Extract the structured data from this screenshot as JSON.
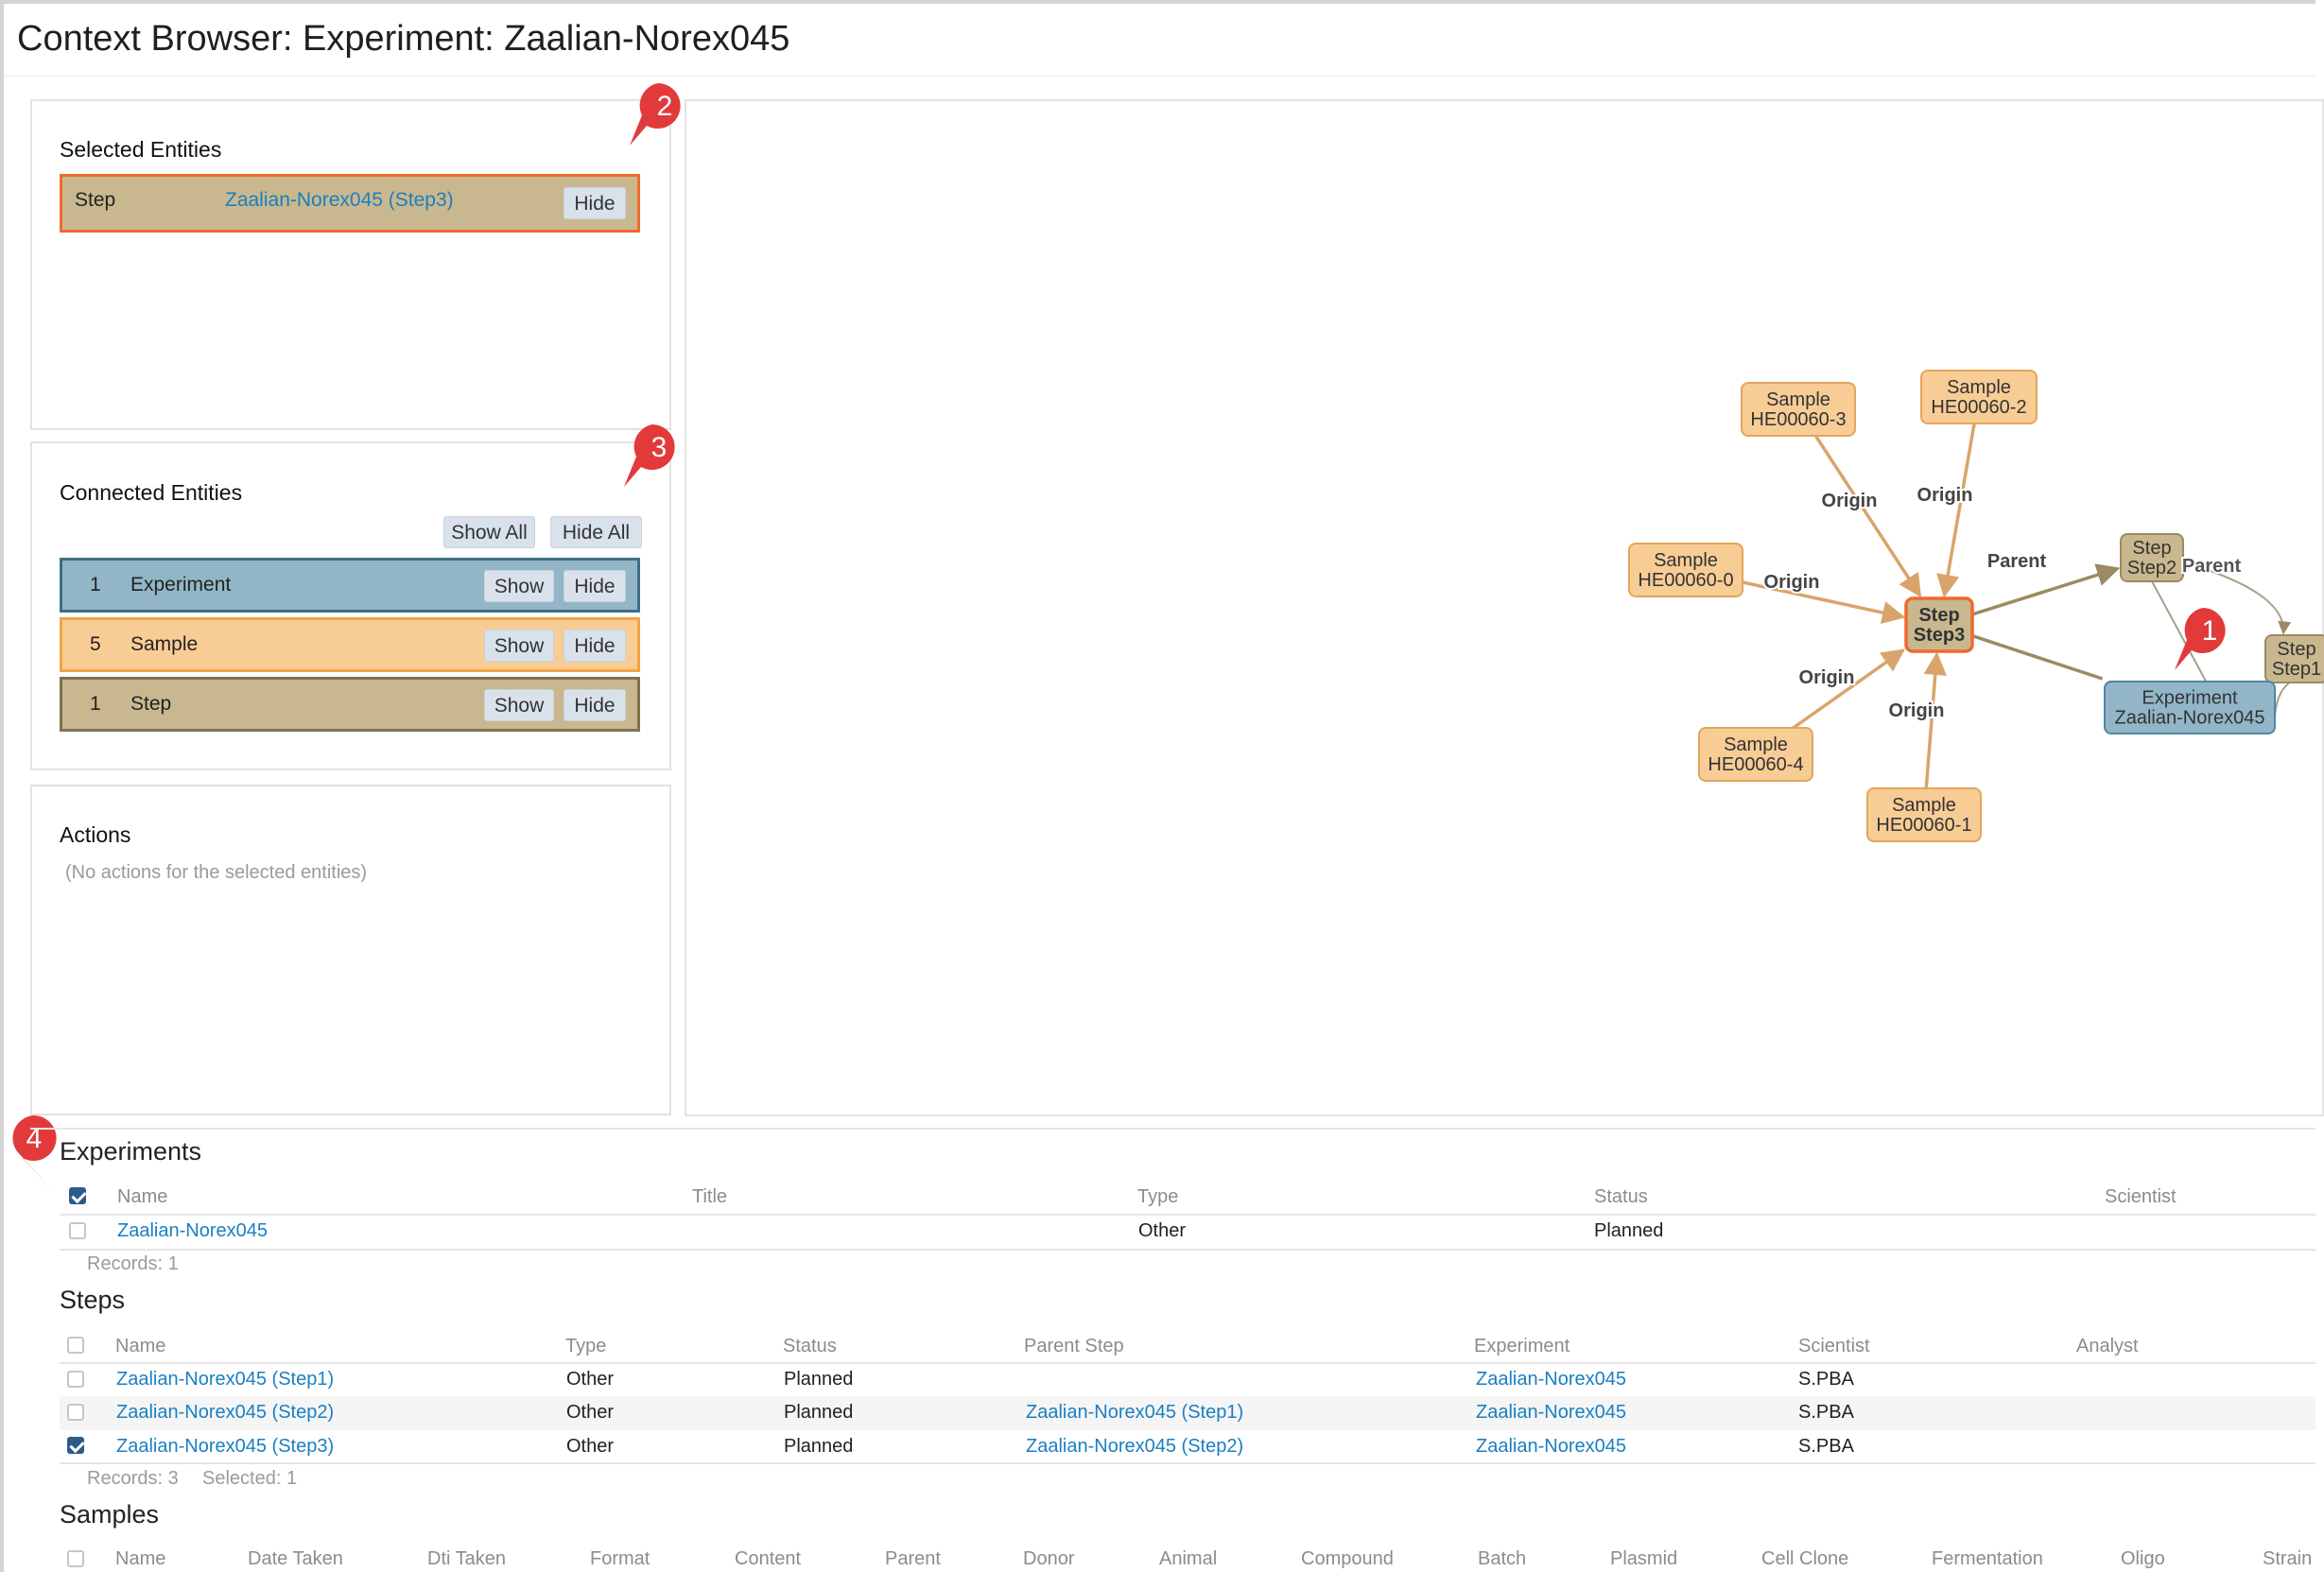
{
  "header": {
    "title": "Context Browser: Experiment: Zaalian-Norex045"
  },
  "selected": {
    "title": "Selected Entities",
    "row": {
      "type": "Step",
      "name": "Zaalian-Norex045 (Step3)",
      "hide_label": "Hide"
    }
  },
  "connected": {
    "title": "Connected Entities",
    "show_all": "Show All",
    "hide_all": "Hide All",
    "rows": [
      {
        "count": "1",
        "type": "Experiment",
        "show": "Show",
        "hide": "Hide",
        "color": "#92b6c8",
        "border": "#3f6e85"
      },
      {
        "count": "5",
        "type": "Sample",
        "show": "Show",
        "hide": "Hide",
        "color": "#f8cc95",
        "border": "#f2a345"
      },
      {
        "count": "1",
        "type": "Step",
        "show": "Show",
        "hide": "Hide",
        "color": "#c9b88f",
        "border": "#7f7150"
      }
    ]
  },
  "actions": {
    "title": "Actions",
    "empty": "(No actions for the selected entities)"
  },
  "markers": [
    "1",
    "2",
    "3",
    "4"
  ],
  "graph": {
    "nodes": [
      {
        "id": "step3",
        "type": "Step",
        "name": "Step3",
        "kind": "step-selected"
      },
      {
        "id": "step2",
        "type": "Step",
        "name": "Step2",
        "kind": "step"
      },
      {
        "id": "step1",
        "type": "Step",
        "name": "Step1",
        "kind": "step"
      },
      {
        "id": "exp",
        "type": "Experiment",
        "name": "Zaalian-Norex045",
        "kind": "experiment"
      },
      {
        "id": "s3",
        "type": "Sample",
        "name": "HE00060-3",
        "kind": "sample"
      },
      {
        "id": "s2",
        "type": "Sample",
        "name": "HE00060-2",
        "kind": "sample"
      },
      {
        "id": "s0",
        "type": "Sample",
        "name": "HE00060-0",
        "kind": "sample"
      },
      {
        "id": "s4",
        "type": "Sample",
        "name": "HE00060-4",
        "kind": "sample"
      },
      {
        "id": "s1",
        "type": "Sample",
        "name": "HE00060-1",
        "kind": "sample"
      }
    ],
    "edge_labels": {
      "origin": "Origin",
      "parent": "Parent"
    }
  },
  "experiments": {
    "title": "Experiments",
    "columns": [
      "Name",
      "Title",
      "Type",
      "Status",
      "Scientist"
    ],
    "rows": [
      {
        "name": "Zaalian-Norex045",
        "title": "",
        "type": "Other",
        "status": "Planned",
        "scientist": ""
      }
    ],
    "records": "Records: 1"
  },
  "steps": {
    "title": "Steps",
    "columns": [
      "Name",
      "Type",
      "Status",
      "Parent Step",
      "Experiment",
      "Scientist",
      "Analyst"
    ],
    "rows": [
      {
        "name": "Zaalian-Norex045 (Step1)",
        "type": "Other",
        "status": "Planned",
        "parent": "",
        "experiment": "Zaalian-Norex045",
        "scientist": "S.PBA",
        "checked": false
      },
      {
        "name": "Zaalian-Norex045 (Step2)",
        "type": "Other",
        "status": "Planned",
        "parent": "Zaalian-Norex045 (Step1)",
        "experiment": "Zaalian-Norex045",
        "scientist": "S.PBA",
        "checked": false
      },
      {
        "name": "Zaalian-Norex045 (Step3)",
        "type": "Other",
        "status": "Planned",
        "parent": "Zaalian-Norex045 (Step2)",
        "experiment": "Zaalian-Norex045",
        "scientist": "S.PBA",
        "checked": true
      }
    ],
    "records": "Records: 3",
    "selected": "Selected: 1"
  },
  "samples": {
    "title": "Samples",
    "columns": [
      "Name",
      "Date Taken",
      "Dti Taken",
      "Format",
      "Content",
      "Parent",
      "Donor",
      "Animal",
      "Compound",
      "Batch",
      "Plasmid",
      "Cell Clone",
      "Fermentation",
      "Oligo",
      "Strain"
    ]
  }
}
